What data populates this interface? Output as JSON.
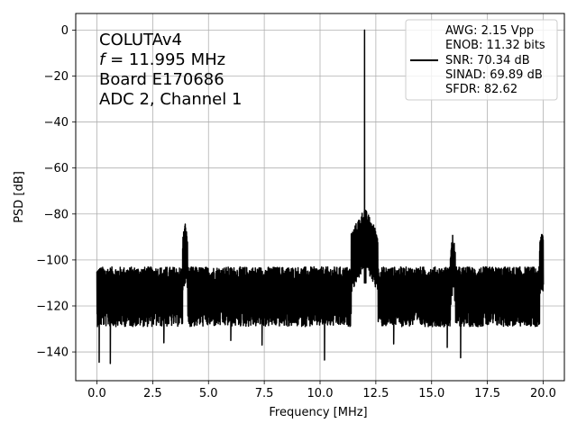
{
  "chart_data": {
    "type": "line",
    "title": "",
    "xlabel": "Frequency [MHz]",
    "ylabel": "PSD [dB]",
    "xlim": [
      -0.95,
      20.95
    ],
    "ylim": [
      -152.5,
      7.2
    ],
    "xticks": [
      0.0,
      2.5,
      5.0,
      7.5,
      10.0,
      12.5,
      15.0,
      17.5,
      20.0
    ],
    "xtick_labels": [
      "0.0",
      "2.5",
      "5.0",
      "7.5",
      "10.0",
      "12.5",
      "15.0",
      "17.5",
      "20.0"
    ],
    "yticks": [
      0,
      -20,
      -40,
      -60,
      -80,
      -100,
      -120,
      -140
    ],
    "ytick_labels": [
      "0",
      "−20",
      "−40",
      "−60",
      "−80",
      "−100",
      "−120",
      "−140"
    ],
    "grid": true,
    "line_color": "#000000",
    "annotation": [
      "COLUTAv4",
      "f = 11.995 MHz",
      "Board E170686",
      "ADC 2, Channel 1"
    ],
    "legend": {
      "placement": "upper right",
      "lines": [
        "AWG: 2.15 Vpp",
        "ENOB: 11.32 bits",
        "SNR: 70.34 dB",
        "SINAD: 69.89 dB",
        "SFDR: 82.62"
      ]
    },
    "noise_floor": {
      "x_start": 0.0,
      "x_end": 20.0,
      "mean_db": -115,
      "range_db": [
        -128,
        -104
      ]
    },
    "series": [
      {
        "name": "",
        "peaks": [
          {
            "x": 11.995,
            "y": 0.0
          },
          {
            "x": 3.95,
            "y": -88.5
          },
          {
            "x": 12.05,
            "y": -84.0
          },
          {
            "x": 15.95,
            "y": -93.5
          },
          {
            "x": 19.95,
            "y": -91.0
          }
        ],
        "dips": [
          {
            "x": 0.1,
            "y": -144.5
          },
          {
            "x": 0.6,
            "y": -145.0
          },
          {
            "x": 10.2,
            "y": -143.5
          },
          {
            "x": 16.3,
            "y": -142.5
          },
          {
            "x": 3.0,
            "y": -136.0
          },
          {
            "x": 6.0,
            "y": -135.0
          },
          {
            "x": 7.4,
            "y": -137.0
          },
          {
            "x": 13.3,
            "y": -136.5
          },
          {
            "x": 15.7,
            "y": -138.0
          }
        ]
      }
    ]
  }
}
